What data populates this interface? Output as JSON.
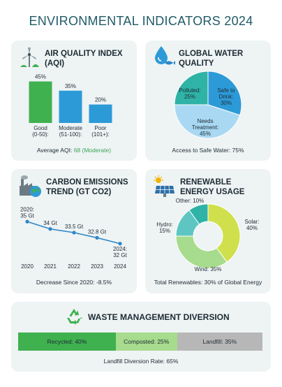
{
  "page_title": "ENVIRONMENTAL INDICATORS 2024",
  "colors": {
    "green": "#3fb14f",
    "blue": "#2d9ad8",
    "light_blue": "#a9d8f3",
    "teal": "#2fb3a6",
    "lime": "#cfe04c",
    "light_green": "#a7db8d",
    "gray": "#b7b7b7",
    "aqua": "#5ec6c2",
    "cyan": "#9fe0d8"
  },
  "aqi": {
    "title_line1": "AIR QUALITY INDEX",
    "title_line2": "(AQI)",
    "caption_prefix": "Average AQI:",
    "caption_value": "68 (Moderate)",
    "icon": "wind-turbine-icon"
  },
  "water": {
    "title_line1": "GLOBAL WATER",
    "title_line2": "QUALITY",
    "caption": "Access to Safe Water: 75%",
    "icon": "water-drop-icon"
  },
  "carbon": {
    "title_line1": "CARBON EMISSIONS",
    "title_line2": "TREND (Gt CO2)",
    "caption": "Decrease Since 2020: -8.5%",
    "icon": "factory-globe-icon"
  },
  "renewable": {
    "title_line1": "RENEWABLE",
    "title_line2": "ENERGY USAGE",
    "caption": "Total Renewables: 30% of Global Energy",
    "icon": "solar-panel-icon"
  },
  "waste": {
    "title": "WASTE MANAGEMENT DIVERSION",
    "caption": "Landfill Diversion Rate: 65%",
    "icon": "recycle-icon"
  },
  "chart_data": [
    {
      "type": "bar",
      "categories": [
        "Good\n(0-50):",
        "Moderate\n(51-100):",
        "Poor\n(101+):"
      ],
      "values": [
        45,
        35,
        20
      ],
      "data_labels": [
        "45%",
        "35%",
        "20%"
      ],
      "colors": [
        "#3fb14f",
        "#2d9ad8",
        "#2d9ad8"
      ],
      "ylim": [
        0,
        50
      ]
    },
    {
      "type": "pie",
      "slices": [
        {
          "label_lines": [
            "Safe to",
            "Drink:",
            "30%"
          ],
          "value": 30,
          "color": "#2d9ad8"
        },
        {
          "label_lines": [
            "Needs",
            "Treatment:",
            "45%"
          ],
          "value": 45,
          "color": "#a9d8f3"
        },
        {
          "label_lines": [
            "Polluted:",
            "25%"
          ],
          "value": 25,
          "color": "#2fb3a6"
        }
      ]
    },
    {
      "type": "line",
      "x": [
        "2020",
        "2021",
        "2022",
        "2023",
        "2024"
      ],
      "y": [
        35,
        34,
        33.5,
        32.8,
        32
      ],
      "point_labels": [
        [
          "2020:",
          "35 Gt"
        ],
        [
          "34 Gt"
        ],
        [
          "33.5 Gt"
        ],
        [
          "32.8 Gt"
        ],
        [
          "2024:",
          "32 Gt"
        ]
      ],
      "color": "#2d86c8",
      "ylim": [
        31.5,
        35.5
      ]
    },
    {
      "type": "pie",
      "donut": true,
      "slices": [
        {
          "label_lines": [
            "Solar:",
            "40%"
          ],
          "value": 40,
          "color": "#cfe04c"
        },
        {
          "label_lines": [
            "Wind: 35%"
          ],
          "value": 35,
          "color": "#a7db8d"
        },
        {
          "label_lines": [
            "Hydro:",
            "15%"
          ],
          "value": 15,
          "color": "#5ec6c2"
        },
        {
          "label_lines": [
            "Other: 10%"
          ],
          "value": 10,
          "color": "#2fb3a6"
        }
      ]
    },
    {
      "type": "bar",
      "orientation": "stacked-horizontal",
      "segments": [
        {
          "label": "Recycled: 40%",
          "value": 40,
          "color": "#3fb14f"
        },
        {
          "label": "Composted: 25%",
          "value": 25,
          "color": "#a7db8d"
        },
        {
          "label": "Landfill: 35%",
          "value": 35,
          "color": "#b7b7b7"
        }
      ]
    }
  ]
}
